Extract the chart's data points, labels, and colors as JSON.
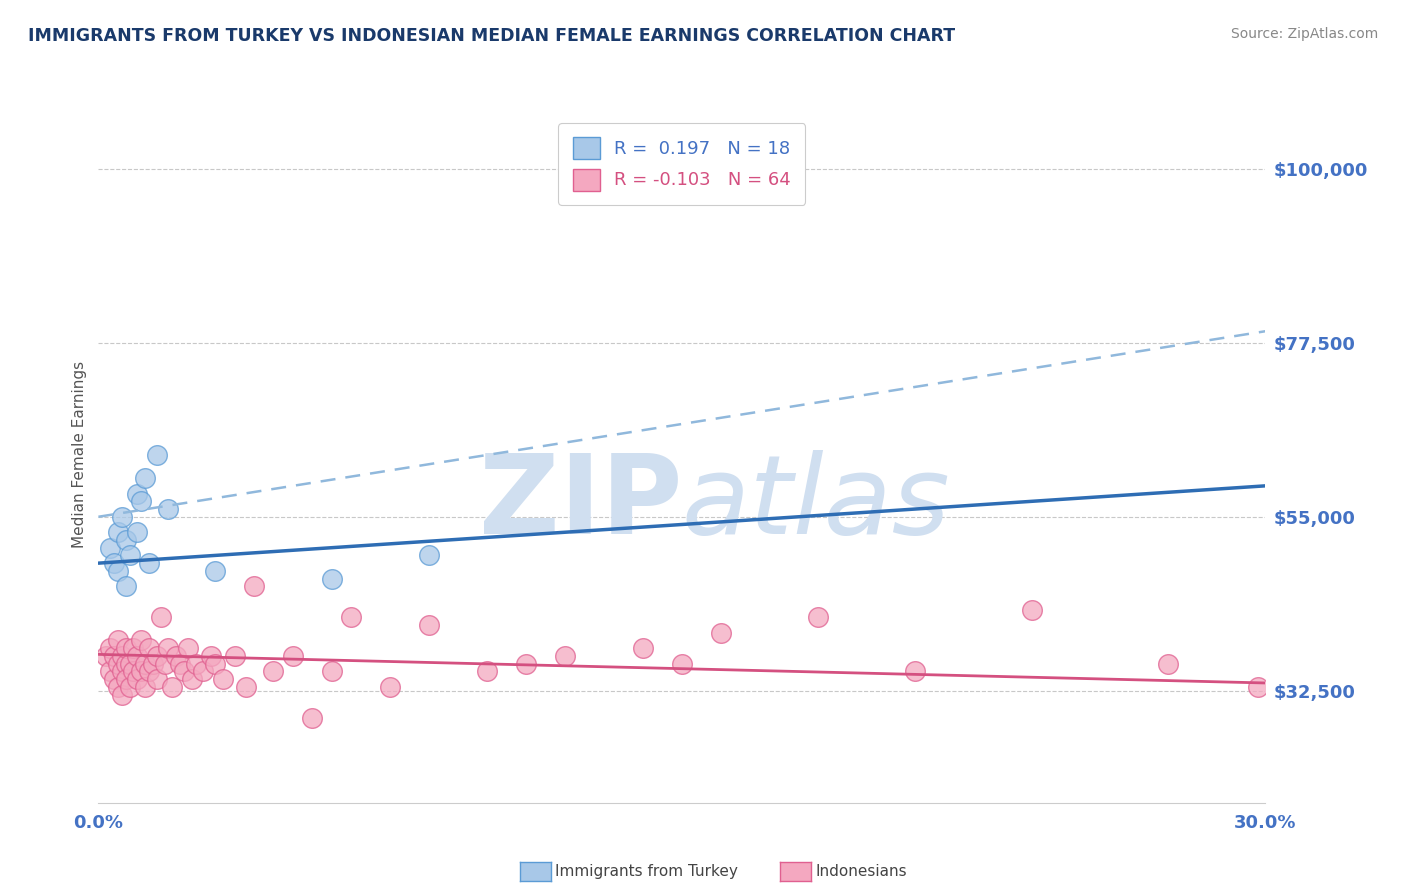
{
  "title": "IMMIGRANTS FROM TURKEY VS INDONESIAN MEDIAN FEMALE EARNINGS CORRELATION CHART",
  "source": "Source: ZipAtlas.com",
  "ylabel": "Median Female Earnings",
  "xlim": [
    0.0,
    0.3
  ],
  "ylim": [
    18000,
    108000
  ],
  "yticks": [
    32500,
    55000,
    77500,
    100000
  ],
  "ytick_labels": [
    "$32,500",
    "$55,000",
    "$77,500",
    "$100,000"
  ],
  "background_color": "#ffffff",
  "grid_color": "#c8c8c8",
  "turkey_color": "#a8c8e8",
  "turkey_edge_color": "#5b9bd5",
  "indonesia_color": "#f4a8c0",
  "indonesia_edge_color": "#e06090",
  "turkey_R": 0.197,
  "turkey_N": 18,
  "indonesia_R": -0.103,
  "indonesia_N": 64,
  "turkey_scatter_x": [
    0.003,
    0.004,
    0.005,
    0.005,
    0.006,
    0.007,
    0.007,
    0.008,
    0.01,
    0.01,
    0.011,
    0.012,
    0.013,
    0.015,
    0.018,
    0.03,
    0.06,
    0.085
  ],
  "turkey_scatter_y": [
    51000,
    49000,
    53000,
    48000,
    55000,
    52000,
    46000,
    50000,
    58000,
    53000,
    57000,
    60000,
    49000,
    63000,
    56000,
    48000,
    47000,
    50000
  ],
  "indonesia_scatter_x": [
    0.002,
    0.003,
    0.003,
    0.004,
    0.004,
    0.005,
    0.005,
    0.005,
    0.006,
    0.006,
    0.006,
    0.007,
    0.007,
    0.007,
    0.008,
    0.008,
    0.009,
    0.009,
    0.01,
    0.01,
    0.011,
    0.011,
    0.012,
    0.012,
    0.013,
    0.013,
    0.014,
    0.015,
    0.015,
    0.016,
    0.017,
    0.018,
    0.019,
    0.02,
    0.021,
    0.022,
    0.023,
    0.024,
    0.025,
    0.027,
    0.029,
    0.03,
    0.032,
    0.035,
    0.038,
    0.04,
    0.045,
    0.05,
    0.055,
    0.06,
    0.065,
    0.075,
    0.085,
    0.1,
    0.11,
    0.12,
    0.14,
    0.15,
    0.16,
    0.185,
    0.21,
    0.24,
    0.275,
    0.298
  ],
  "indonesia_scatter_y": [
    37000,
    38000,
    35000,
    37000,
    34000,
    36000,
    33000,
    39000,
    37000,
    35000,
    32000,
    36000,
    34000,
    38000,
    36000,
    33000,
    38000,
    35000,
    37000,
    34000,
    39000,
    35000,
    36000,
    33000,
    38000,
    35000,
    36000,
    37000,
    34000,
    42000,
    36000,
    38000,
    33000,
    37000,
    36000,
    35000,
    38000,
    34000,
    36000,
    35000,
    37000,
    36000,
    34000,
    37000,
    33000,
    46000,
    35000,
    37000,
    29000,
    35000,
    42000,
    33000,
    41000,
    35000,
    36000,
    37000,
    38000,
    36000,
    40000,
    42000,
    35000,
    43000,
    36000,
    33000
  ],
  "turkey_line_x": [
    0.0,
    0.3
  ],
  "turkey_line_y": [
    49000,
    59000
  ],
  "turkey_dashed_line_x": [
    0.0,
    0.3
  ],
  "turkey_dashed_line_y": [
    55000,
    79000
  ],
  "indonesia_line_x": [
    0.0,
    0.3
  ],
  "indonesia_line_y": [
    37200,
    33500
  ],
  "title_color": "#1a3a6b",
  "axis_label_color": "#555555",
  "tick_color": "#4472c4",
  "source_color": "#888888",
  "watermark_color": "#d0dff0"
}
